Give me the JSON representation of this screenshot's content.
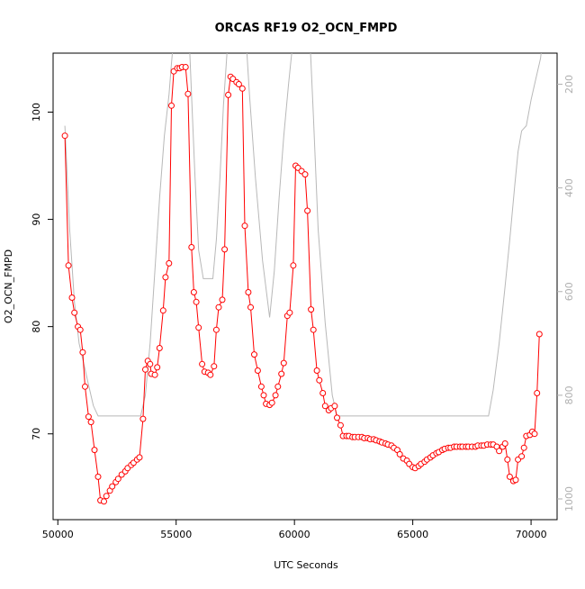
{
  "chart_data": {
    "type": "line",
    "title": "ORCAS RF19 O2_OCN_FMPD",
    "xlabel": "UTC Seconds",
    "ylabel": "O2_OCN_FMPD",
    "xlim": [
      49800,
      71100
    ],
    "ylim": [
      62,
      105.5
    ],
    "y2lim": [
      1040,
      140
    ],
    "x_ticks": [
      50000,
      55000,
      60000,
      65000,
      70000
    ],
    "y_ticks": [
      70,
      80,
      90,
      100
    ],
    "y2_ticks": [
      200,
      400,
      600,
      800,
      1000
    ],
    "series": [
      {
        "role": "primary",
        "color": "#ff0000",
        "marker": "open-circle",
        "points": [
          [
            50300,
            97.8
          ],
          [
            50450,
            85.7
          ],
          [
            50600,
            82.7
          ],
          [
            50700,
            81.3
          ],
          [
            50850,
            80.0
          ],
          [
            50950,
            79.7
          ],
          [
            51050,
            77.6
          ],
          [
            51150,
            74.4
          ],
          [
            51300,
            71.6
          ],
          [
            51400,
            71.1
          ],
          [
            51550,
            68.5
          ],
          [
            51700,
            66.0
          ],
          [
            51800,
            63.8
          ],
          [
            51950,
            63.7
          ],
          [
            52050,
            64.2
          ],
          [
            52200,
            64.7
          ],
          [
            52300,
            65.1
          ],
          [
            52450,
            65.5
          ],
          [
            52550,
            65.8
          ],
          [
            52700,
            66.2
          ],
          [
            52850,
            66.5
          ],
          [
            52950,
            66.8
          ],
          [
            53100,
            67.1
          ],
          [
            53200,
            67.3
          ],
          [
            53350,
            67.6
          ],
          [
            53450,
            67.8
          ],
          [
            53600,
            71.4
          ],
          [
            53700,
            76.0
          ],
          [
            53800,
            76.8
          ],
          [
            53900,
            76.5
          ],
          [
            53950,
            75.6
          ],
          [
            54100,
            75.5
          ],
          [
            54200,
            76.2
          ],
          [
            54300,
            78.0
          ],
          [
            54450,
            81.5
          ],
          [
            54550,
            84.6
          ],
          [
            54700,
            85.9
          ],
          [
            54800,
            100.6
          ],
          [
            54900,
            103.8
          ],
          [
            55050,
            104.1
          ],
          [
            55150,
            104.1
          ],
          [
            55250,
            104.2
          ],
          [
            55400,
            104.2
          ],
          [
            55500,
            101.7
          ],
          [
            55650,
            87.4
          ],
          [
            55750,
            83.2
          ],
          [
            55850,
            82.3
          ],
          [
            55950,
            79.9
          ],
          [
            56100,
            76.5
          ],
          [
            56200,
            75.8
          ],
          [
            56350,
            75.7
          ],
          [
            56450,
            75.5
          ],
          [
            56600,
            76.3
          ],
          [
            56700,
            79.7
          ],
          [
            56800,
            81.8
          ],
          [
            56950,
            82.5
          ],
          [
            57050,
            87.2
          ],
          [
            57200,
            101.6
          ],
          [
            57300,
            103.3
          ],
          [
            57400,
            103.1
          ],
          [
            57550,
            102.8
          ],
          [
            57650,
            102.6
          ],
          [
            57800,
            102.2
          ],
          [
            57900,
            89.4
          ],
          [
            58050,
            83.2
          ],
          [
            58150,
            81.8
          ],
          [
            58300,
            77.4
          ],
          [
            58450,
            75.9
          ],
          [
            58600,
            74.4
          ],
          [
            58700,
            73.6
          ],
          [
            58800,
            72.8
          ],
          [
            58950,
            72.7
          ],
          [
            59050,
            72.9
          ],
          [
            59200,
            73.6
          ],
          [
            59300,
            74.4
          ],
          [
            59450,
            75.6
          ],
          [
            59550,
            76.6
          ],
          [
            59700,
            81.0
          ],
          [
            59800,
            81.3
          ],
          [
            59950,
            85.7
          ],
          [
            60050,
            95.0
          ],
          [
            60150,
            94.8
          ],
          [
            60300,
            94.5
          ],
          [
            60450,
            94.2
          ],
          [
            60550,
            90.8
          ],
          [
            60700,
            81.6
          ],
          [
            60800,
            79.7
          ],
          [
            60950,
            75.9
          ],
          [
            61050,
            75.0
          ],
          [
            61200,
            73.8
          ],
          [
            61300,
            72.6
          ],
          [
            61450,
            72.2
          ],
          [
            61550,
            72.4
          ],
          [
            61700,
            72.6
          ],
          [
            61800,
            71.5
          ],
          [
            61950,
            70.8
          ],
          [
            62050,
            69.8
          ],
          [
            62200,
            69.8
          ],
          [
            62300,
            69.8
          ],
          [
            62450,
            69.7
          ],
          [
            62550,
            69.7
          ],
          [
            62700,
            69.7
          ],
          [
            62850,
            69.7
          ],
          [
            62950,
            69.6
          ],
          [
            63100,
            69.6
          ],
          [
            63200,
            69.5
          ],
          [
            63350,
            69.5
          ],
          [
            63450,
            69.4
          ],
          [
            63600,
            69.3
          ],
          [
            63700,
            69.2
          ],
          [
            63850,
            69.1
          ],
          [
            63950,
            69.0
          ],
          [
            64100,
            68.9
          ],
          [
            64200,
            68.7
          ],
          [
            64350,
            68.5
          ],
          [
            64450,
            68.1
          ],
          [
            64600,
            67.7
          ],
          [
            64750,
            67.5
          ],
          [
            64850,
            67.2
          ],
          [
            65000,
            66.9
          ],
          [
            65100,
            66.8
          ],
          [
            65250,
            67.0
          ],
          [
            65350,
            67.2
          ],
          [
            65500,
            67.4
          ],
          [
            65600,
            67.6
          ],
          [
            65750,
            67.8
          ],
          [
            65850,
            68.0
          ],
          [
            66000,
            68.2
          ],
          [
            66100,
            68.3
          ],
          [
            66250,
            68.5
          ],
          [
            66350,
            68.6
          ],
          [
            66500,
            68.7
          ],
          [
            66600,
            68.7
          ],
          [
            66750,
            68.8
          ],
          [
            66850,
            68.8
          ],
          [
            67000,
            68.8
          ],
          [
            67100,
            68.8
          ],
          [
            67250,
            68.8
          ],
          [
            67350,
            68.8
          ],
          [
            67500,
            68.8
          ],
          [
            67650,
            68.8
          ],
          [
            67750,
            68.9
          ],
          [
            67900,
            68.9
          ],
          [
            68000,
            68.9
          ],
          [
            68150,
            69.0
          ],
          [
            68300,
            69.0
          ],
          [
            68400,
            69.0
          ],
          [
            68550,
            68.8
          ],
          [
            68650,
            68.4
          ],
          [
            68800,
            68.8
          ],
          [
            68900,
            69.1
          ],
          [
            69000,
            67.6
          ],
          [
            69100,
            66.0
          ],
          [
            69250,
            65.6
          ],
          [
            69350,
            65.7
          ],
          [
            69450,
            67.6
          ],
          [
            69600,
            67.9
          ],
          [
            69700,
            68.7
          ],
          [
            69800,
            69.8
          ],
          [
            69950,
            69.9
          ],
          [
            70050,
            70.2
          ],
          [
            70150,
            70.0
          ],
          [
            70250,
            73.8
          ],
          [
            70350,
            79.3
          ]
        ]
      },
      {
        "role": "secondary",
        "color": "#b8b8b8",
        "marker": "none",
        "points": [
          [
            50300,
            280
          ],
          [
            50500,
            480
          ],
          [
            50700,
            620
          ],
          [
            50900,
            700
          ],
          [
            51100,
            740
          ],
          [
            51300,
            780
          ],
          [
            51500,
            820
          ],
          [
            51700,
            840
          ],
          [
            53500,
            840
          ],
          [
            53700,
            800
          ],
          [
            53900,
            700
          ],
          [
            54100,
            560
          ],
          [
            54300,
            420
          ],
          [
            54500,
            300
          ],
          [
            54700,
            220
          ],
          [
            54800,
            160
          ],
          [
            54900,
            110
          ],
          [
            55550,
            110
          ],
          [
            55650,
            220
          ],
          [
            55800,
            380
          ],
          [
            55950,
            520
          ],
          [
            56150,
            575
          ],
          [
            56550,
            575
          ],
          [
            56700,
            500
          ],
          [
            56850,
            380
          ],
          [
            57000,
            240
          ],
          [
            57150,
            140
          ],
          [
            57300,
            110
          ],
          [
            57950,
            110
          ],
          [
            58100,
            220
          ],
          [
            58350,
            380
          ],
          [
            58650,
            540
          ],
          [
            58950,
            650
          ],
          [
            59150,
            560
          ],
          [
            59350,
            420
          ],
          [
            59550,
            300
          ],
          [
            59750,
            200
          ],
          [
            59950,
            110
          ],
          [
            60650,
            110
          ],
          [
            60800,
            260
          ],
          [
            61000,
            480
          ],
          [
            61300,
            660
          ],
          [
            61600,
            800
          ],
          [
            61800,
            840
          ],
          [
            62000,
            840
          ],
          [
            68200,
            840
          ],
          [
            68400,
            790
          ],
          [
            68650,
            700
          ],
          [
            68900,
            590
          ],
          [
            69100,
            500
          ],
          [
            69300,
            400
          ],
          [
            69450,
            330
          ],
          [
            69600,
            290
          ],
          [
            69800,
            280
          ],
          [
            70000,
            230
          ],
          [
            70200,
            190
          ],
          [
            70400,
            150
          ],
          [
            70500,
            110
          ]
        ]
      }
    ]
  }
}
